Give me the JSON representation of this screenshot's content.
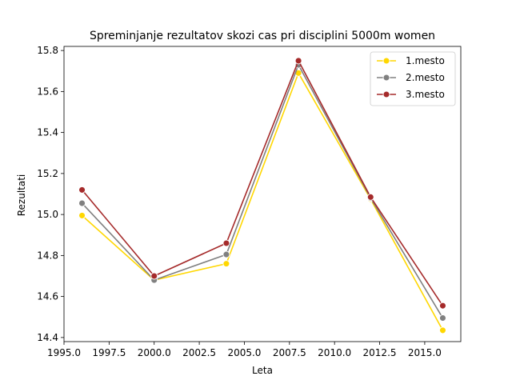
{
  "chart_data": {
    "type": "line",
    "title": "Spreminjanje rezultatov skozi cas pri disciplini 5000m women",
    "xlabel": "Leta",
    "ylabel": "Rezultati",
    "xlim": [
      1995.0,
      2017.0
    ],
    "ylim": [
      14.38,
      15.82
    ],
    "xticks": [
      1995.0,
      1997.5,
      2000.0,
      2002.5,
      2005.0,
      2007.5,
      2010.0,
      2012.5,
      2015.0
    ],
    "xtick_labels": [
      "1995.0",
      "1997.5",
      "2000.0",
      "2002.5",
      "2005.0",
      "2007.5",
      "2010.0",
      "2012.5",
      "2015.0"
    ],
    "yticks": [
      14.4,
      14.6,
      14.8,
      15.0,
      15.2,
      15.4,
      15.6,
      15.8
    ],
    "ytick_labels": [
      "14.4",
      "14.6",
      "14.8",
      "15.0",
      "15.2",
      "15.4",
      "15.6",
      "15.8"
    ],
    "x": [
      1996,
      2000,
      2004,
      2008,
      2012,
      2016
    ],
    "series": [
      {
        "name": "1.mesto",
        "color": "#ffd700",
        "values": [
          14.995,
          14.68,
          14.76,
          15.69,
          15.075,
          14.435
        ]
      },
      {
        "name": "2.mesto",
        "color": "#808080",
        "values": [
          15.055,
          14.68,
          14.805,
          15.73,
          15.08,
          14.495
        ]
      },
      {
        "name": "3.mesto",
        "color": "#a52a2a",
        "values": [
          15.12,
          14.7,
          14.86,
          15.75,
          15.085,
          14.555
        ]
      }
    ],
    "grid": false,
    "legend": "top-right"
  }
}
